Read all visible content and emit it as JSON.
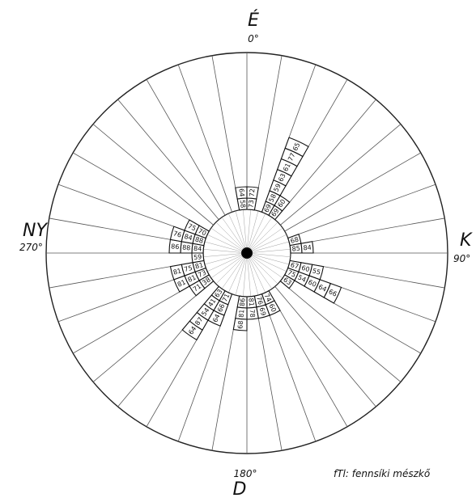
{
  "labels": {
    "north": "É",
    "north_deg": "0°",
    "east": "K",
    "east_deg": "90°",
    "south": "D",
    "south_deg": "180°",
    "west": "NY",
    "west_deg": "270°"
  },
  "caption": "fTl: fennsíki mészkő",
  "sector_count": 36,
  "sectors": [
    {
      "bearing": 355,
      "values": [
        "58",
        "64"
      ]
    },
    {
      "bearing": 5,
      "values": [
        "73",
        "72"
      ]
    },
    {
      "bearing": 25,
      "values": [
        "69",
        "58",
        "59",
        "63",
        "61",
        "77",
        "65"
      ]
    },
    {
      "bearing": 35,
      "values": [
        "69",
        "60"
      ]
    },
    {
      "bearing": 75,
      "values": [
        "68"
      ]
    },
    {
      "bearing": 85,
      "values": [
        "85",
        "84"
      ]
    },
    {
      "bearing": 105,
      "values": [
        "67",
        "60",
        "55"
      ]
    },
    {
      "bearing": 115,
      "values": [
        "75",
        "54",
        "60",
        "64",
        "66"
      ]
    },
    {
      "bearing": 125,
      "values": [
        "63"
      ]
    },
    {
      "bearing": 155,
      "values": [
        "74",
        "60"
      ]
    },
    {
      "bearing": 165,
      "values": [
        "76",
        "69"
      ]
    },
    {
      "bearing": 175,
      "values": [
        "81",
        "78"
      ]
    },
    {
      "bearing": 185,
      "values": [
        "86",
        "81",
        "68"
      ]
    },
    {
      "bearing": 205,
      "values": [
        "71",
        "66",
        "64"
      ]
    },
    {
      "bearing": 215,
      "values": [
        "63",
        "41",
        "54",
        "87",
        "64"
      ]
    },
    {
      "bearing": 235,
      "values": [
        "38",
        "71"
      ]
    },
    {
      "bearing": 245,
      "values": [
        "73",
        "81",
        "81"
      ]
    },
    {
      "bearing": 255,
      "values": [
        "81",
        "75",
        "81"
      ]
    },
    {
      "bearing": 265,
      "values": [
        "59"
      ]
    },
    {
      "bearing": 275,
      "values": [
        "84",
        "88",
        "86"
      ]
    },
    {
      "bearing": 285,
      "values": [
        "88",
        "84",
        "76"
      ]
    },
    {
      "bearing": 295,
      "values": [
        "70",
        "75"
      ]
    }
  ]
}
